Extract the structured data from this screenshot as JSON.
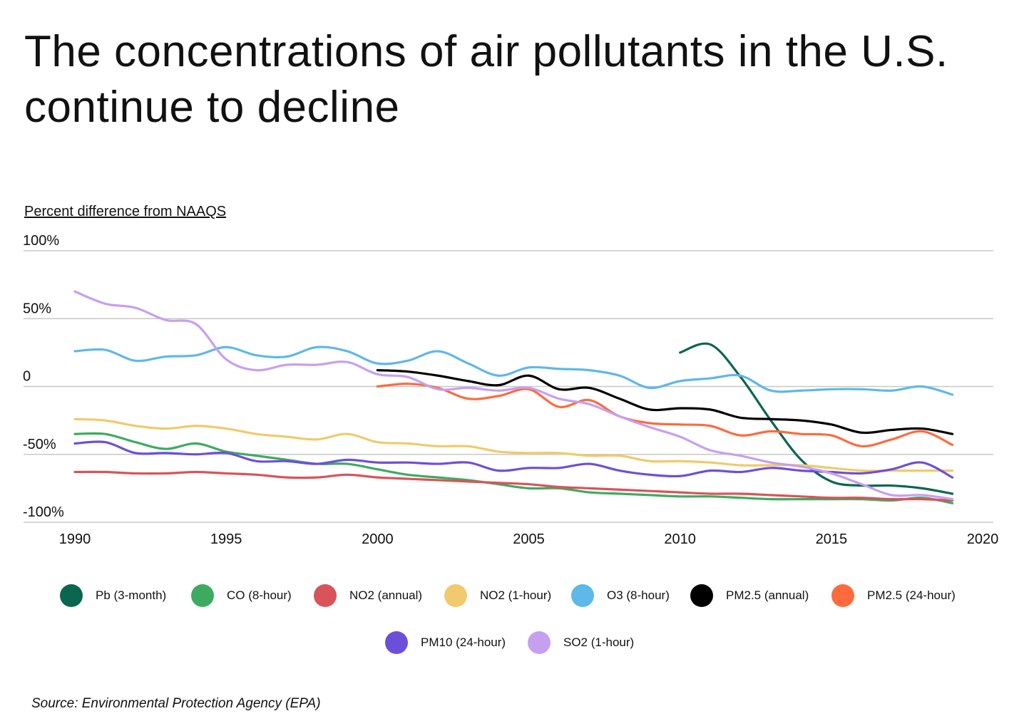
{
  "chart_data": {
    "type": "line",
    "title": "The concentrations of air pollutants in the U.S. continue to decline",
    "ylabel": "Percent difference from NAAQS",
    "xlabel": "",
    "xlim": [
      1990,
      2020
    ],
    "ylim": [
      -100,
      100
    ],
    "xticks": [
      1990,
      1995,
      2000,
      2005,
      2010,
      2015,
      2020
    ],
    "yticks": [
      {
        "value": 100,
        "label": "100%"
      },
      {
        "value": 50,
        "label": "50%"
      },
      {
        "value": 0,
        "label": "0"
      },
      {
        "value": -50,
        "label": "-50%"
      },
      {
        "value": -100,
        "label": "-100%"
      }
    ],
    "grid": "horizontal",
    "legend_placement": "bottom",
    "series": [
      {
        "name": "Pb (3-month)",
        "color": "#0b6650",
        "start": 2010,
        "values": [
          25,
          31,
          7,
          -25,
          -54,
          -70,
          -73,
          -73,
          -75,
          -79
        ]
      },
      {
        "name": "CO (8-hour)",
        "color": "#3dab5f",
        "start": 1990,
        "values": [
          -35,
          -35,
          -41,
          -46,
          -42,
          -48,
          -51,
          -54,
          -57,
          -57,
          -61,
          -65,
          -67,
          -69,
          -72,
          -75,
          -75,
          -78,
          -79,
          -80,
          -81,
          -81,
          -82,
          -83,
          -83,
          -83,
          -83,
          -84,
          -82,
          -86
        ]
      },
      {
        "name": "NO2 (annual)",
        "color": "#d9535a",
        "start": 1990,
        "values": [
          -63,
          -63,
          -64,
          -64,
          -63,
          -64,
          -65,
          -67,
          -67,
          -65,
          -67,
          -68,
          -69,
          -70,
          -71,
          -72,
          -74,
          -75,
          -76,
          -77,
          -78,
          -79,
          -79,
          -80,
          -81,
          -82,
          -82,
          -83,
          -83,
          -84
        ]
      },
      {
        "name": "NO2 (1-hour)",
        "color": "#f0ca6c",
        "start": 1990,
        "values": [
          -24,
          -25,
          -29,
          -31,
          -29,
          -31,
          -35,
          -37,
          -39,
          -35,
          -41,
          -42,
          -44,
          -44,
          -48,
          -49,
          -49,
          -51,
          -51,
          -55,
          -55,
          -56,
          -58,
          -58,
          -58,
          -60,
          -62,
          -62,
          -62,
          -62
        ]
      },
      {
        "name": "O3 (8-hour)",
        "color": "#5eb8e8",
        "start": 1990,
        "values": [
          26,
          27,
          19,
          22,
          23,
          29,
          23,
          22,
          29,
          26,
          17,
          19,
          26,
          17,
          8,
          14,
          13,
          12,
          8,
          -1,
          4,
          6,
          8,
          -3,
          -3,
          -2,
          -2,
          -3,
          0,
          -6
        ]
      },
      {
        "name": "PM2.5 (annual)",
        "color": "#000000",
        "start": 2000,
        "values": [
          12,
          11,
          8,
          4,
          1,
          8,
          -2,
          -1,
          -9,
          -17,
          -16,
          -17,
          -23,
          -24,
          -25,
          -28,
          -34,
          -32,
          -31,
          -35
        ]
      },
      {
        "name": "PM2.5 (24-hour)",
        "color": "#ff6a3d",
        "start": 2000,
        "values": [
          0,
          2,
          -1,
          -9,
          -7,
          -2,
          -15,
          -10,
          -22,
          -27,
          -28,
          -29,
          -36,
          -33,
          -35,
          -36,
          -44,
          -39,
          -33,
          -43
        ]
      },
      {
        "name": "PM10 (24-hour)",
        "color": "#6c4fd9",
        "start": 1990,
        "values": [
          -42,
          -41,
          -49,
          -49,
          -50,
          -49,
          -55,
          -55,
          -57,
          -54,
          -56,
          -56,
          -57,
          -56,
          -62,
          -60,
          -60,
          -57,
          -62,
          -65,
          -66,
          -62,
          -63,
          -60,
          -62,
          -63,
          -64,
          -61,
          -56,
          -67
        ]
      },
      {
        "name": "SO2 (1-hour)",
        "color": "#c79ff0",
        "start": 1990,
        "values": [
          70,
          61,
          58,
          49,
          46,
          20,
          12,
          16,
          16,
          18,
          9,
          7,
          -2,
          -1,
          -3,
          -1,
          -9,
          -13,
          -22,
          -30,
          -37,
          -47,
          -51,
          -56,
          -59,
          -64,
          -72,
          -80,
          -80,
          -83
        ]
      }
    ]
  },
  "source": "Source:  Environmental Protection Agency (EPA)"
}
